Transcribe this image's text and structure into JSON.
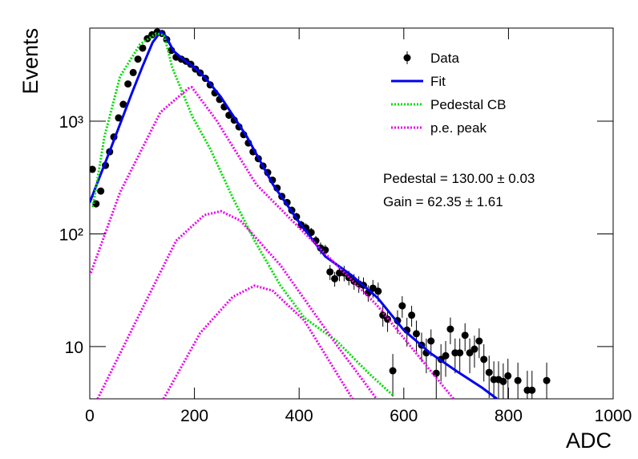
{
  "chart_data": {
    "type": "line",
    "log_y": true,
    "xlabel": "ADC",
    "ylabel": "Events",
    "xlim": [
      0,
      1000
    ],
    "ylim": [
      3.44,
      6700
    ],
    "xticks": [
      0,
      200,
      400,
      600,
      800,
      1000
    ],
    "yticks": [
      10,
      {
        "value": 100,
        "label": "10²"
      },
      {
        "value": 1000,
        "label": "10³"
      }
    ],
    "legend": "top right",
    "annotations": [
      "Pedestal = 130.00 ± 0.03",
      "Gain = 62.35 ± 1.61"
    ],
    "series": [
      {
        "name": "Data",
        "color": "#000000",
        "style": "points",
        "x": [
          5,
          12,
          21,
          30,
          38,
          46,
          55,
          64,
          73,
          83,
          92,
          101,
          110,
          119,
          129,
          138,
          147,
          156,
          165,
          175,
          184,
          193,
          202,
          211,
          221,
          230,
          239,
          248,
          257,
          266,
          276,
          285,
          294,
          303,
          312,
          322,
          331,
          340,
          349,
          358,
          367,
          377,
          386,
          395,
          404,
          413,
          423,
          432,
          441,
          450,
          459,
          468,
          477,
          486,
          495,
          505,
          514,
          523,
          532,
          541,
          551,
          560,
          569,
          579,
          588,
          597,
          606,
          615,
          624,
          634,
          643,
          652,
          662,
          671,
          680,
          689,
          698,
          707,
          717,
          726,
          735,
          744,
          753,
          763,
          772,
          781,
          790,
          799,
          818,
          836,
          845,
          873
        ],
        "values": [
          374,
          185,
          240,
          405,
          535,
          725,
          1070,
          1410,
          2140,
          2700,
          3550,
          4450,
          5400,
          5850,
          6200,
          6000,
          5300,
          4250,
          3700,
          3550,
          3400,
          3200,
          2900,
          2680,
          2400,
          2100,
          1780,
          1560,
          1340,
          1130,
          1020,
          890,
          760,
          640,
          535,
          465,
          400,
          350,
          300,
          255,
          215,
          190,
          162,
          142,
          120,
          113,
          103,
          87,
          75,
          72,
          46,
          40,
          45,
          45,
          41,
          38,
          36,
          35,
          30,
          33,
          31,
          19,
          17.5,
          6.1,
          17,
          23,
          14,
          19,
          13,
          10.3,
          8.8,
          11.2,
          5.8,
          7.7,
          8.3,
          14.3,
          8.8,
          8.8,
          12.6,
          8.8,
          9.5,
          11.2,
          7.7,
          5.9,
          5.1,
          5.1,
          4.9,
          5.5,
          5,
          4.1,
          4.1,
          5
        ],
        "errors": [
          19,
          14,
          15,
          20,
          23,
          27,
          33,
          38,
          46,
          52,
          60,
          67,
          73,
          76,
          79,
          77,
          73,
          65,
          61,
          60,
          58,
          57,
          54,
          52,
          49,
          46,
          42,
          39,
          37,
          34,
          32,
          30,
          28,
          25,
          23,
          22,
          20,
          19,
          17,
          16,
          15,
          14,
          13,
          12,
          11,
          11,
          10,
          9,
          9,
          8,
          7,
          6,
          7,
          7,
          6,
          6,
          6,
          6,
          5,
          6,
          6,
          4,
          4,
          2.5,
          4,
          5,
          4,
          4,
          4,
          3,
          3,
          3,
          2.4,
          2.8,
          2.9,
          3.8,
          3,
          3,
          3.5,
          3,
          3,
          3.3,
          2.8,
          2.4,
          2.3,
          2.3,
          2.2,
          2.3,
          2.2,
          2,
          2,
          2.2
        ]
      },
      {
        "name": "Fit",
        "color": "#0000ee",
        "style": "solid",
        "x": [
          0,
          20,
          40,
          60,
          80,
          100,
          120,
          135,
          145,
          160,
          180,
          200,
          220,
          250,
          300,
          350,
          400,
          450,
          500,
          550,
          600,
          650,
          700,
          750,
          778
        ],
        "values": [
          190,
          330,
          570,
          1000,
          1750,
          3000,
          5000,
          6200,
          5700,
          4200,
          3500,
          3000,
          2450,
          1650,
          730,
          275,
          127,
          63,
          43,
          27,
          14,
          8.8,
          6.1,
          4.3,
          3.44
        ]
      },
      {
        "name": "Pedestal CB",
        "color": "#00dd00",
        "style": "dotted",
        "x": [
          6,
          28,
          58,
          96,
          127,
          142,
          158,
          196,
          230,
          273,
          315,
          364,
          410,
          472,
          533,
          579
        ],
        "values": [
          173,
          730,
          2500,
          4800,
          6000,
          5800,
          2950,
          1100,
          570,
          210,
          87,
          35,
          18,
          11.2,
          5.8,
          3.7
        ]
      },
      {
        "name": "p.e. peak",
        "color": "#ee00ee",
        "style": "dotted",
        "x": [
          2,
          58,
          135,
          188,
          195,
          242,
          318,
          395,
          548,
          695,
          null,
          15,
          89,
          165,
          219,
          251,
          288,
          364,
          472,
          548,
          null,
          141,
          211,
          273,
          315,
          349,
          410,
          502
        ],
        "values": [
          45,
          235,
          1200,
          1950,
          2000,
          1020,
          275,
          120,
          23.5,
          3.44,
          null,
          3.44,
          17,
          87,
          147,
          159,
          131,
          53,
          10.3,
          3.44,
          null,
          3.44,
          13.2,
          27.6,
          34.7,
          31.4,
          17,
          3.44
        ]
      }
    ]
  }
}
